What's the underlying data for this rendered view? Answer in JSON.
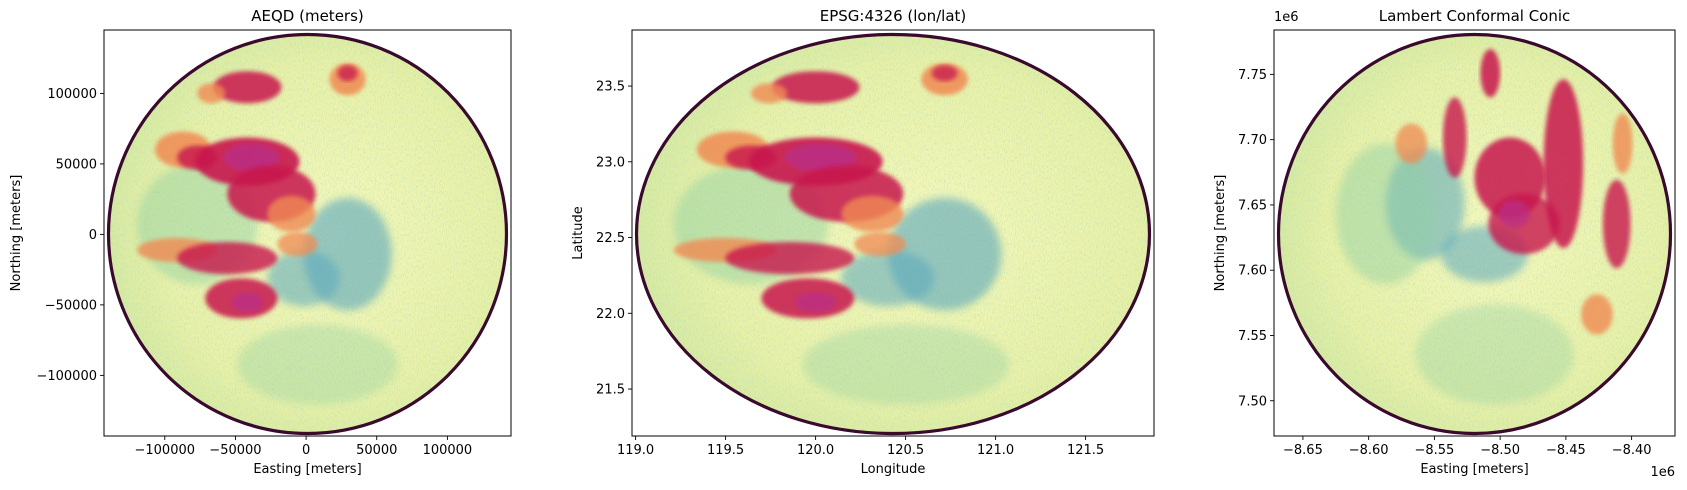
{
  "chart_data": [
    {
      "type": "heatmap",
      "title": "AEQD (meters)",
      "xlabel": "Easting [meters]",
      "ylabel": "Northing [meters]",
      "xlim": [
        -143000,
        145000
      ],
      "ylim": [
        -143000,
        145000
      ],
      "xticks": [
        -100000,
        -50000,
        0,
        50000,
        100000
      ],
      "xtick_labels": [
        "−100000",
        "−50000",
        "0",
        "50000",
        "100000"
      ],
      "yticks": [
        -100000,
        -50000,
        0,
        50000,
        100000
      ],
      "ytick_labels": [
        "−100000",
        "−50000",
        "0",
        "50000",
        "100000"
      ],
      "offset_x": "",
      "offset_y": "",
      "colormap": "Spectral_r",
      "grid": false
    },
    {
      "type": "heatmap",
      "title": "EPSG:4326 (lon/lat)",
      "xlabel": "Longitude",
      "ylabel": "Latitude",
      "xlim": [
        118.98,
        121.88
      ],
      "ylim": [
        21.19,
        23.87
      ],
      "xticks": [
        119.0,
        119.5,
        120.0,
        120.5,
        121.0,
        121.5
      ],
      "xtick_labels": [
        "119.0",
        "119.5",
        "120.0",
        "120.5",
        "121.0",
        "121.5"
      ],
      "yticks": [
        21.5,
        22.0,
        22.5,
        23.0,
        23.5
      ],
      "ytick_labels": [
        "21.5",
        "22.0",
        "22.5",
        "23.0",
        "23.5"
      ],
      "offset_x": "",
      "offset_y": "",
      "colormap": "Spectral_r",
      "grid": false
    },
    {
      "type": "heatmap",
      "title": "Lambert Conformal Conic",
      "xlabel": "Easting [meters]",
      "ylabel": "Northing [meters]",
      "xlim": [
        -8.672,
        -8.367
      ],
      "ylim": [
        7.473,
        7.784
      ],
      "xticks": [
        -8.65,
        -8.6,
        -8.55,
        -8.5,
        -8.45,
        -8.4
      ],
      "xtick_labels": [
        "−8.65",
        "−8.60",
        "−8.55",
        "−8.50",
        "−8.45",
        "−8.40"
      ],
      "yticks": [
        7.5,
        7.55,
        7.6,
        7.65,
        7.7,
        7.75
      ],
      "ytick_labels": [
        "7.50",
        "7.55",
        "7.60",
        "7.65",
        "7.70",
        "7.75"
      ],
      "offset_x": "1e6",
      "offset_y": "1e6",
      "colormap": "Spectral_r",
      "grid": false
    }
  ],
  "colors": {
    "ring": "#3a0a2e",
    "background": "#f3f7b0",
    "low": "#8fcfa4",
    "clear_air": "#5aa7bd",
    "moderate": "#f08a52",
    "heavy": "#c8164e",
    "extreme": "#b92f8a"
  }
}
